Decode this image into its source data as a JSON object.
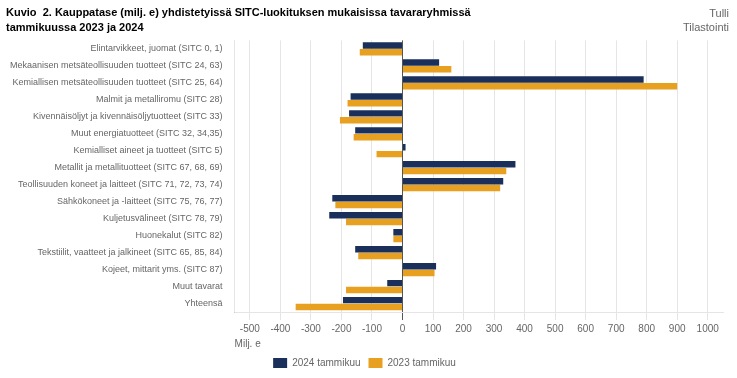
{
  "chart_data": {
    "type": "bar",
    "orientation": "horizontal",
    "title": "Kuvio  2. Kauppatase (milj. e) yhdistetyissä SITC-luokituksen mukaisissa tavararyhmissä",
    "subtitle": "tammikuussa 2023 ja 2024",
    "annotations": [
      "Tulli",
      "Tilastointi"
    ],
    "categories": [
      "Elintarvikkeet, juomat (SITC 0, 1)",
      "Mekaanisen metsäteollisuuden tuotteet (SITC 24, 63)",
      "Kemiallisen metsäteollisuuden tuotteet (SITC 25, 64)",
      "Malmit ja metalliromu (SITC 28)",
      "Kivennäisöljyt ja kivennäisöljytuotteet (SITC 33)",
      "Muut energiatuotteet (SITC 32, 34,35)",
      "Kemialliset aineet ja tuotteet (SITC 5)",
      "Metallit ja metallituotteet (SITC 67, 68, 69)",
      "Teollisuuden koneet ja laitteet (SITC 71, 72, 73, 74)",
      "Sähkökoneet ja -laitteet (SITC 75, 76, 77)",
      "Kuljetusvälineet (SITC 78, 79)",
      "Huonekalut (SITC 82)",
      "Tekstiilit, vaatteet ja jalkineet (SITC 65, 85, 84)",
      "Kojeet, mittarit yms. (SITC 87)",
      "Muut tavarat",
      "Yhteensä"
    ],
    "series": [
      {
        "name": "2024 tammikuu",
        "color": "#1a2f5a",
        "values": [
          -130,
          120,
          790,
          -170,
          -175,
          -155,
          10,
          370,
          330,
          -230,
          -240,
          -30,
          -155,
          110,
          -50,
          -195
        ]
      },
      {
        "name": "2023 tammikuu",
        "color": "#e8a020",
        "values": [
          -140,
          160,
          900,
          -180,
          -205,
          -160,
          -85,
          340,
          320,
          -220,
          -185,
          -30,
          -145,
          105,
          -185,
          -350
        ]
      }
    ],
    "xlabel": "Milj. e",
    "xlim": [
      -550,
      1050
    ],
    "xticks": [
      -500,
      -400,
      -300,
      -200,
      -100,
      0,
      100,
      200,
      300,
      400,
      500,
      600,
      700,
      800,
      900,
      1000
    ],
    "grid": true,
    "legend": "bottom"
  }
}
